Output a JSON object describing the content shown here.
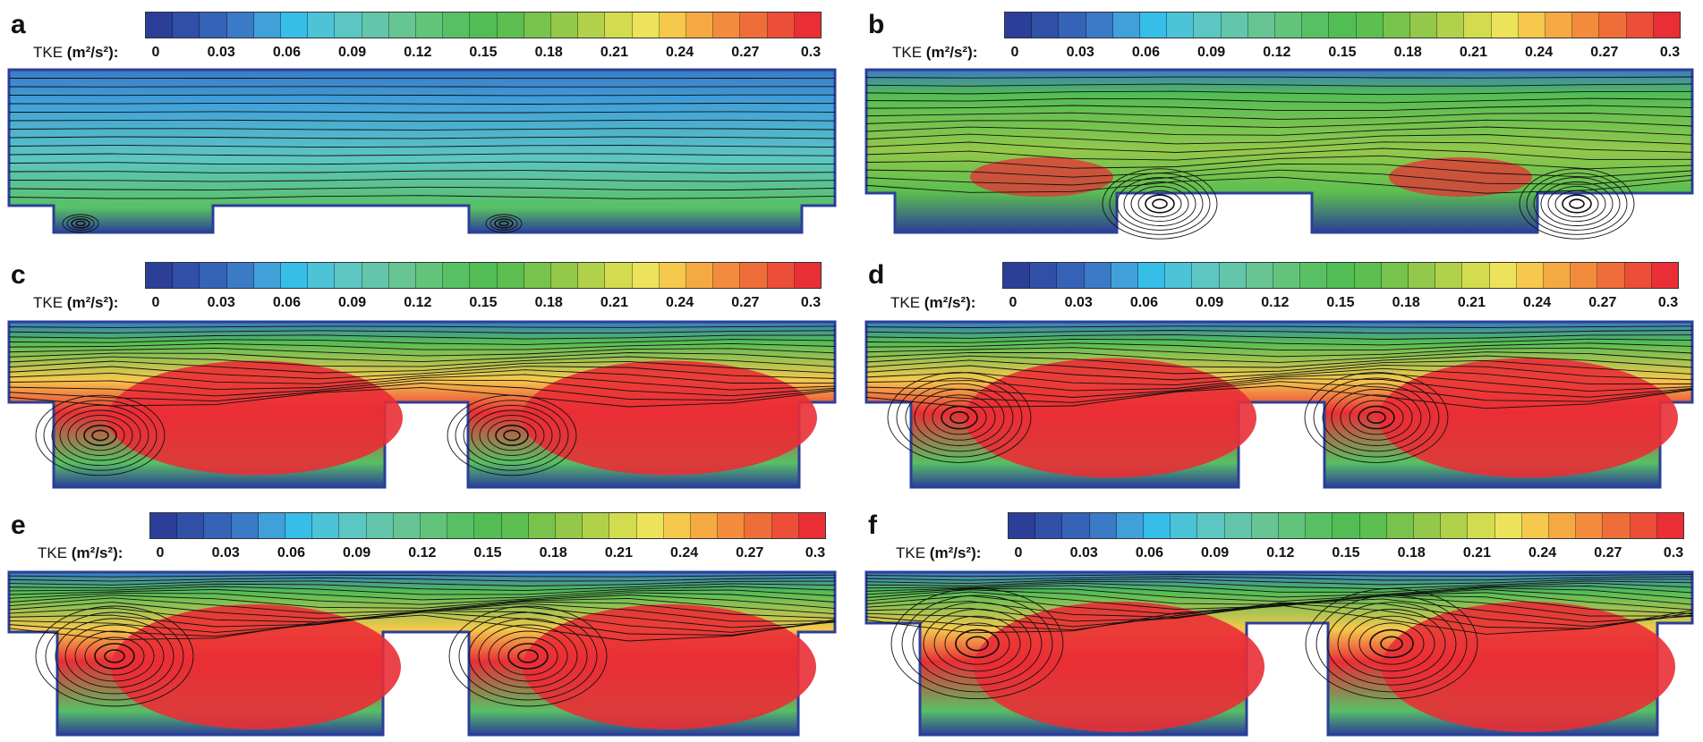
{
  "figure": {
    "colorbar": {
      "label_prefix": "TKE",
      "label_unit": "(m²/s²):",
      "ticks": [
        "0",
        "0.03",
        "0.06",
        "0.09",
        "0.12",
        "0.15",
        "0.18",
        "0.21",
        "0.24",
        "0.27",
        "0.3"
      ],
      "colors": [
        "#2b3f98",
        "#3050a8",
        "#3563b7",
        "#3b7ac6",
        "#40a0da",
        "#36bde8",
        "#4cc3d6",
        "#5cc6c2",
        "#63c5aa",
        "#66c593",
        "#62c47a",
        "#58c064",
        "#52bd55",
        "#5cbf4f",
        "#78c34c",
        "#93c84a",
        "#b2d14a",
        "#d3dc4f",
        "#ede35a",
        "#f6c84c",
        "#f5a943",
        "#f28b3c",
        "#ef6d39",
        "#ec4e37",
        "#ea2e35"
      ]
    },
    "panels": [
      {
        "id": "a",
        "label": "a"
      },
      {
        "id": "b",
        "label": "b"
      },
      {
        "id": "c",
        "label": "c"
      },
      {
        "id": "d",
        "label": "d"
      },
      {
        "id": "e",
        "label": "e"
      },
      {
        "id": "f",
        "label": "f"
      }
    ]
  }
}
